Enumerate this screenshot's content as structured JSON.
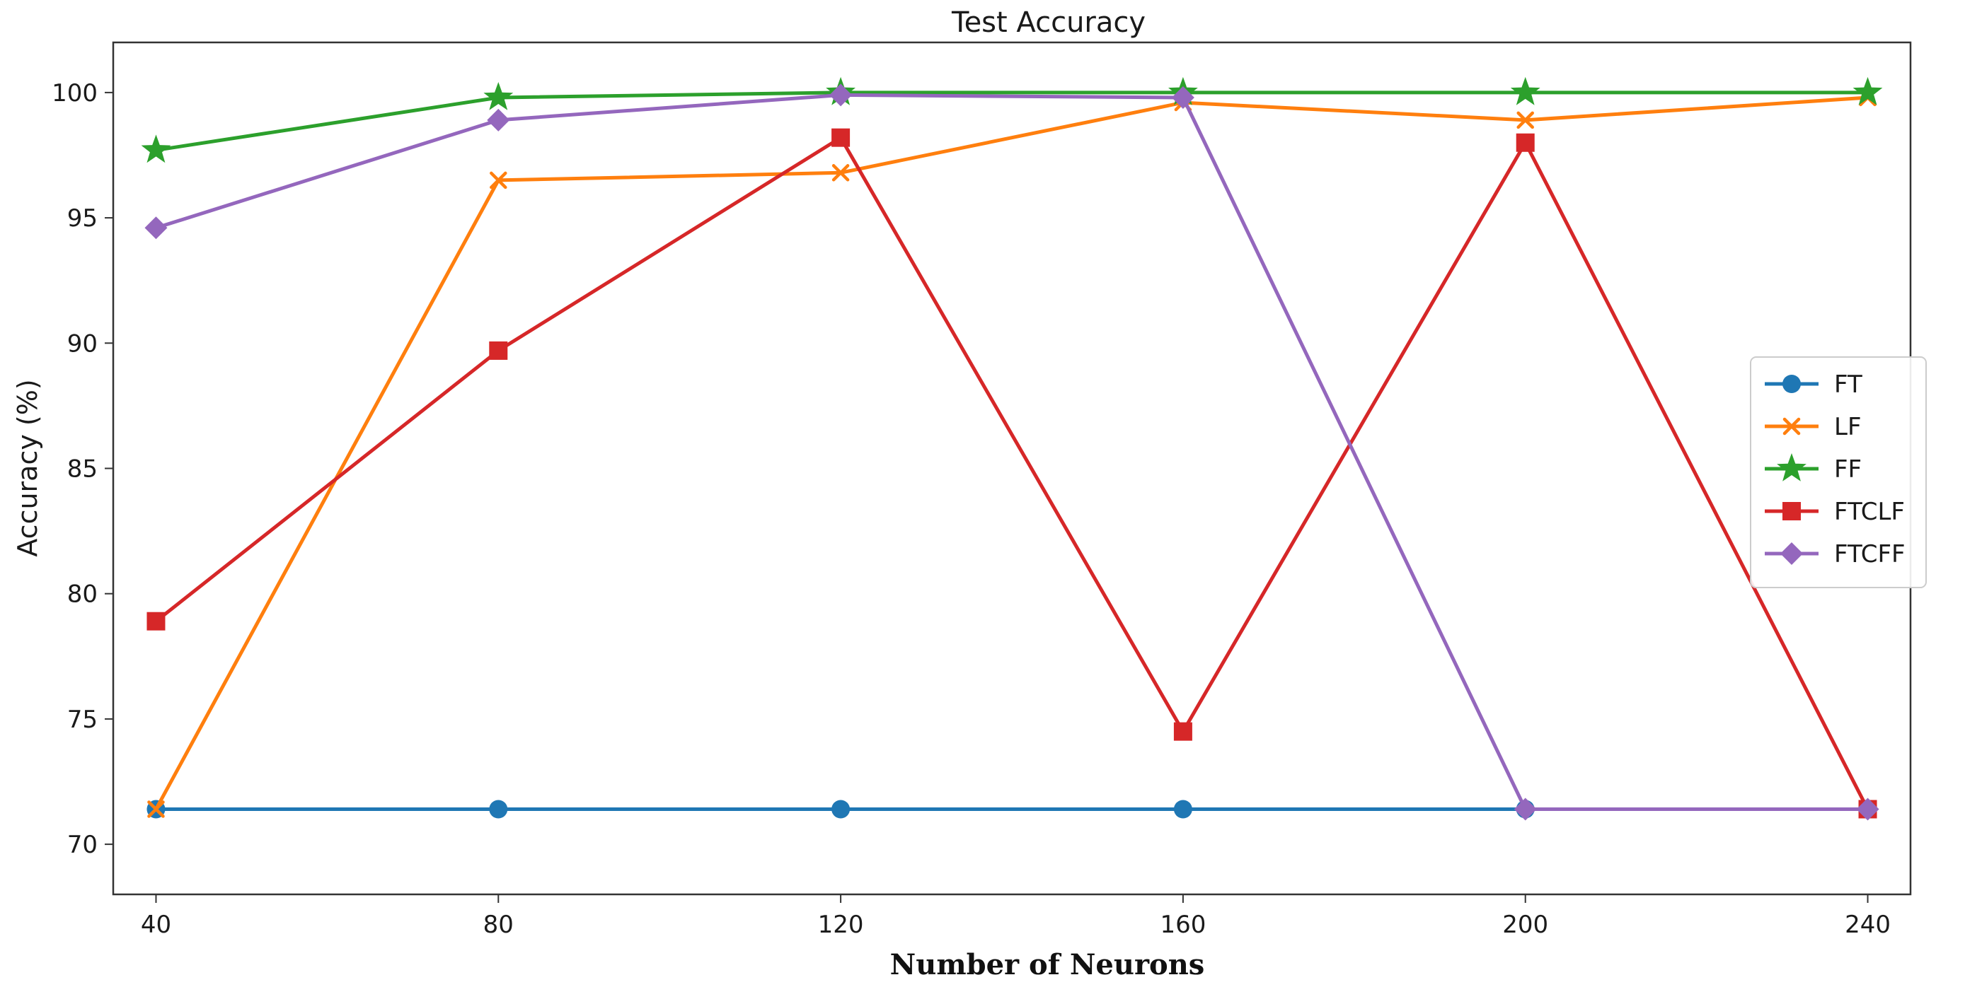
{
  "chart_data": {
    "type": "line",
    "title": "Test Accuracy",
    "xlabel": "Number of Neurons",
    "ylabel": "Accuracy (%)",
    "x": [
      40,
      80,
      120,
      160,
      200,
      240
    ],
    "xticks": [
      "40",
      "80",
      "120",
      "160",
      "200",
      "240"
    ],
    "yticks": [
      "70",
      "75",
      "80",
      "85",
      "90",
      "95",
      "100"
    ],
    "xlim": [
      35,
      245
    ],
    "ylim": [
      68,
      102
    ],
    "grid": false,
    "legend_position": "center-right",
    "series": [
      {
        "name": "FT",
        "color": "#1f77b4",
        "marker": "circle",
        "values": [
          71.4,
          71.4,
          71.4,
          71.4,
          71.4,
          71.4
        ]
      },
      {
        "name": "LF",
        "color": "#ff7f0e",
        "marker": "x",
        "values": [
          71.4,
          96.5,
          96.8,
          99.6,
          98.9,
          99.8
        ]
      },
      {
        "name": "FF",
        "color": "#2ca02c",
        "marker": "star",
        "values": [
          97.7,
          99.8,
          100.0,
          100.0,
          100.0,
          100.0
        ]
      },
      {
        "name": "FTCLF",
        "color": "#d62728",
        "marker": "square",
        "values": [
          78.9,
          89.7,
          98.2,
          74.5,
          98.0,
          71.4
        ]
      },
      {
        "name": "FTCFF",
        "color": "#9467bd",
        "marker": "diamond",
        "values": [
          94.6,
          98.9,
          99.9,
          99.8,
          71.4,
          71.4
        ]
      }
    ]
  }
}
